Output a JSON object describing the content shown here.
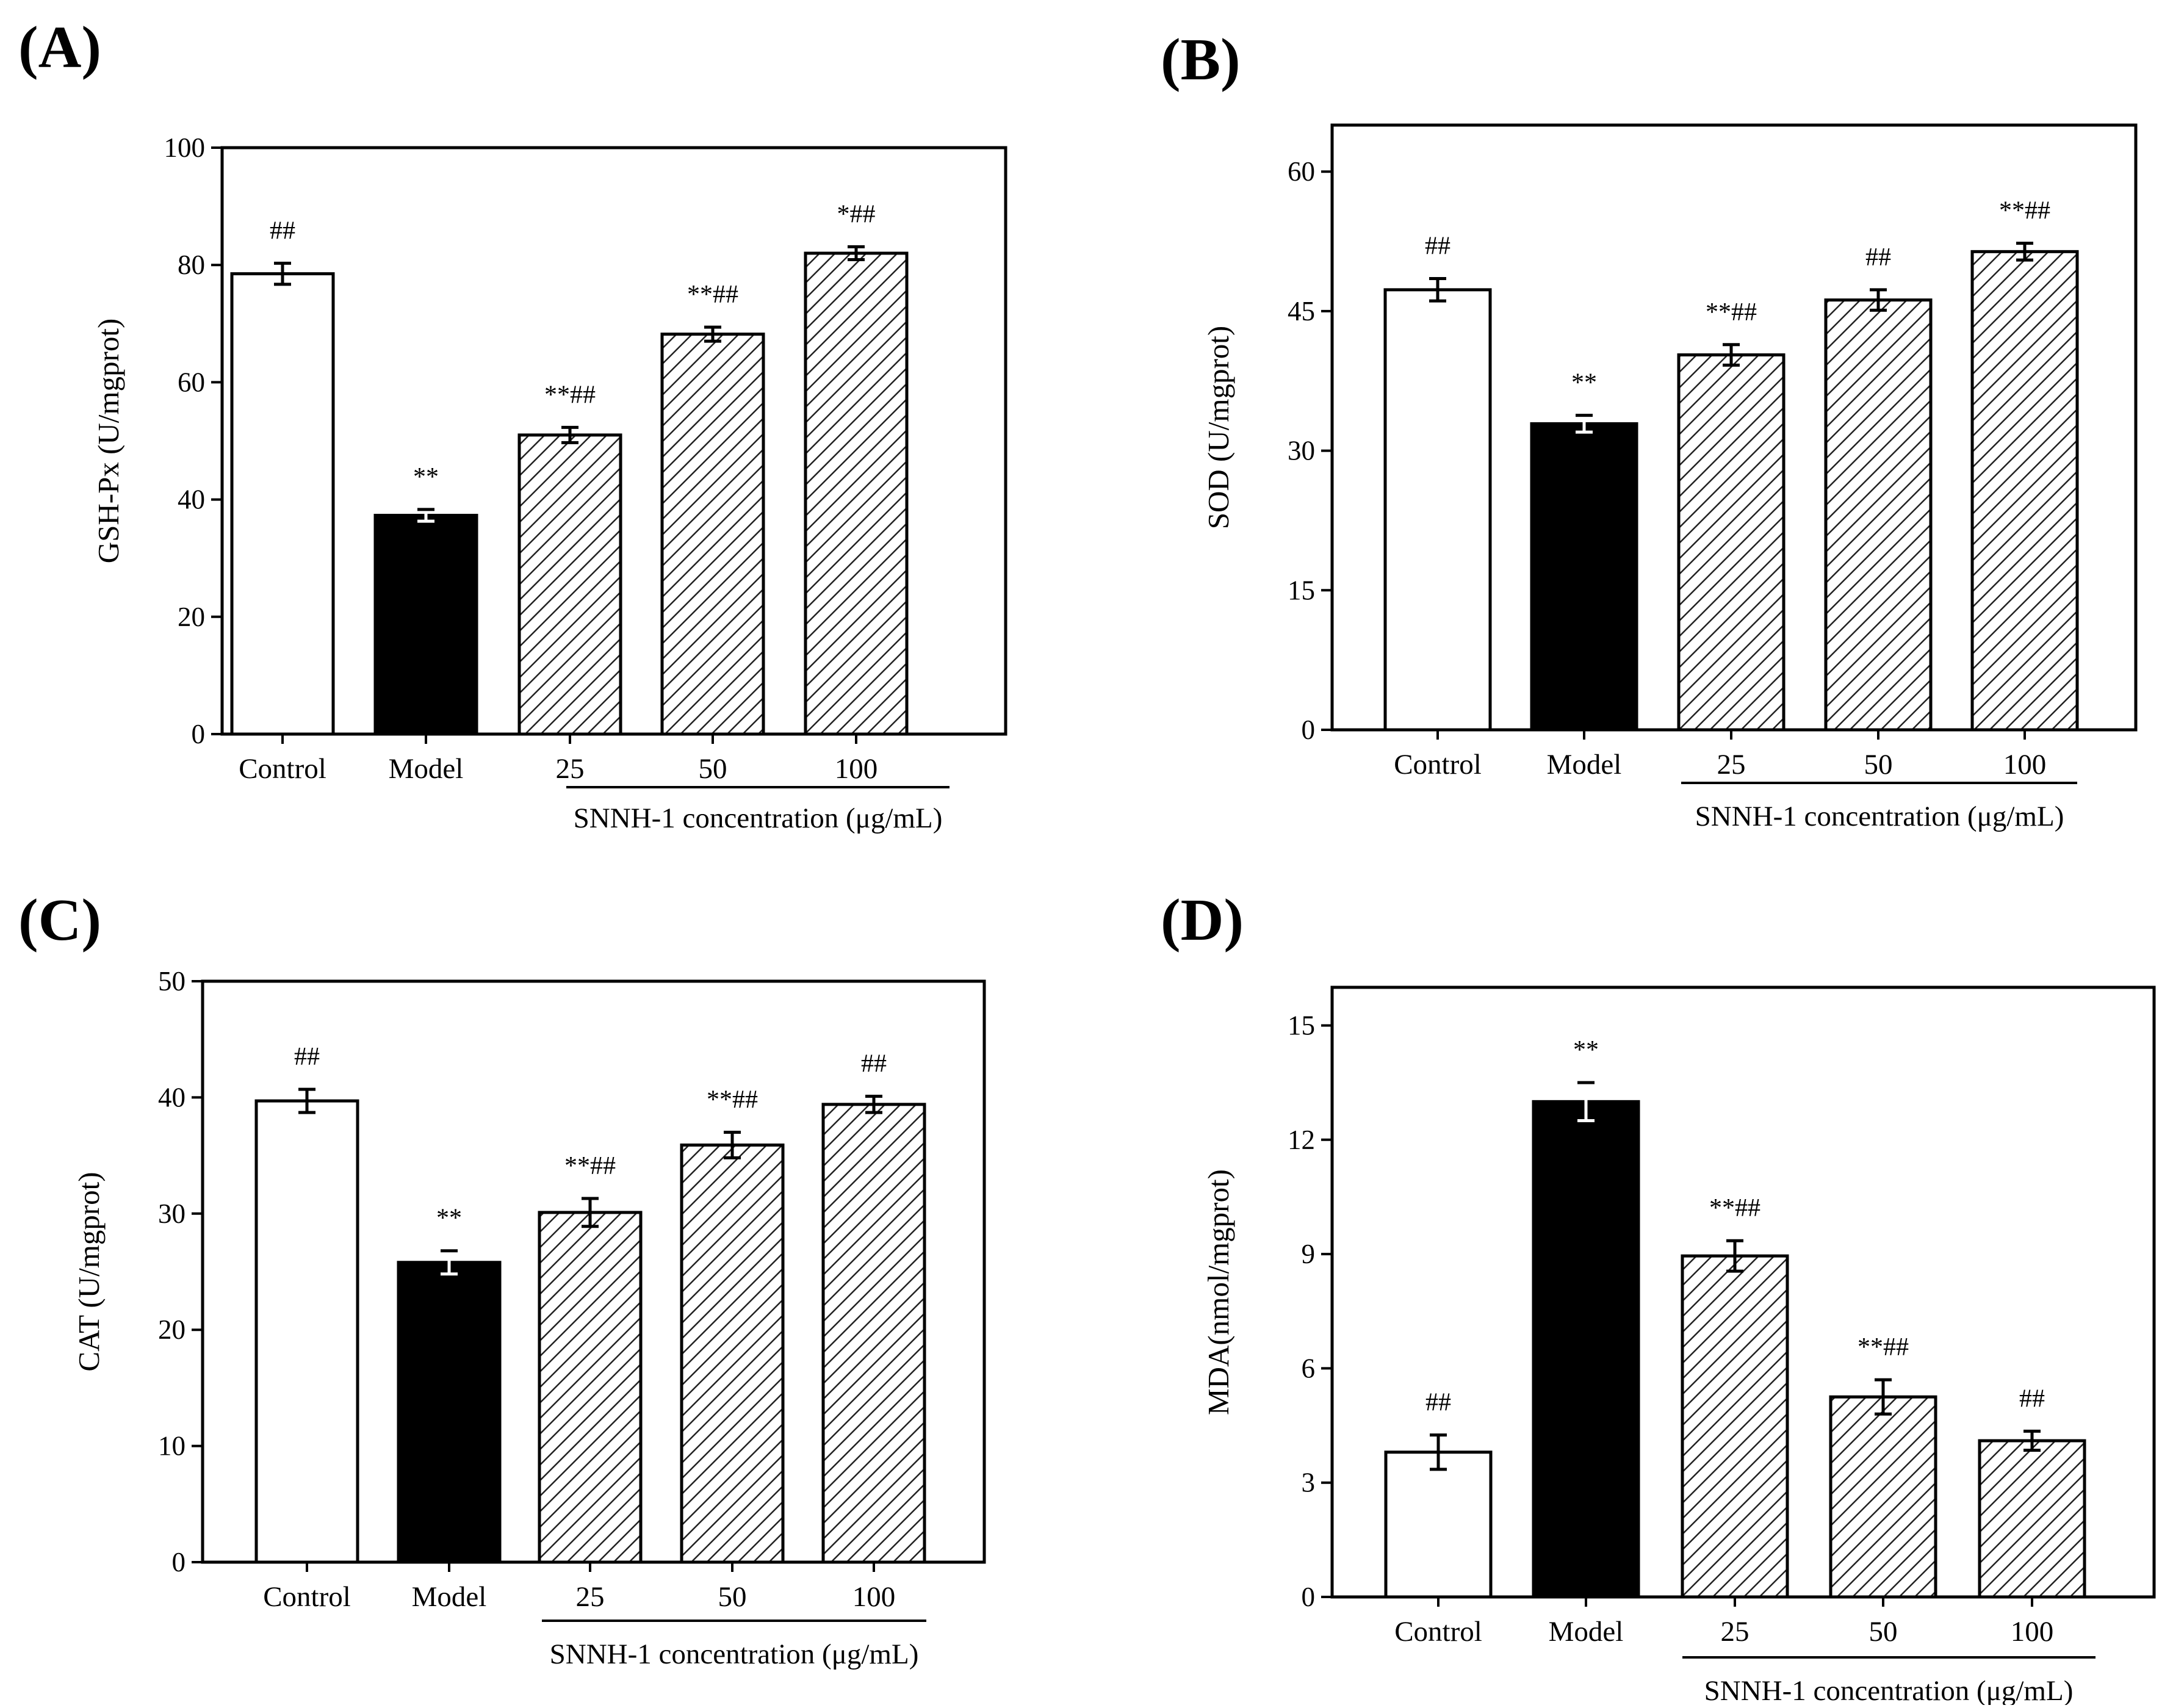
{
  "figure": {
    "categories": [
      "Control",
      "Model",
      "25",
      "50",
      "100"
    ],
    "group_label": "SNNH-1 concentration (μg/mL)"
  },
  "chart_data": [
    {
      "type": "bar",
      "panel": "(A)",
      "ylabel": "GSH-Px (U/mgprot)",
      "xlabel": "",
      "categories": [
        "Control",
        "Model",
        "25",
        "50",
        "100"
      ],
      "group_label": "SNNH-1 concentration (μg/mL)",
      "values": [
        78.5,
        37.3,
        51.0,
        68.2,
        82.0
      ],
      "errors": [
        1.8,
        1.0,
        1.3,
        1.2,
        1.1
      ],
      "styles": [
        "white",
        "black",
        "hatched",
        "hatched",
        "hatched"
      ],
      "annotations": [
        "##",
        "**",
        "**##",
        "**##",
        "*##"
      ],
      "ylim": [
        0,
        100
      ],
      "yticks": [
        0,
        20,
        40,
        60,
        80,
        100
      ]
    },
    {
      "type": "bar",
      "panel": "(B)",
      "ylabel": "SOD (U/mgprot)",
      "xlabel": "",
      "categories": [
        "Control",
        "Model",
        "25",
        "50",
        "100"
      ],
      "group_label": "SNNH-1 concentration (μg/mL)",
      "values": [
        47.3,
        32.9,
        40.3,
        46.2,
        51.4
      ],
      "errors": [
        1.2,
        0.9,
        1.1,
        1.1,
        0.9
      ],
      "styles": [
        "white",
        "black",
        "hatched",
        "hatched",
        "hatched"
      ],
      "annotations": [
        "##",
        "**",
        "**##",
        "##",
        "**##"
      ],
      "ylim": [
        0,
        65
      ],
      "yticks": [
        0,
        15,
        30,
        45,
        60
      ]
    },
    {
      "type": "bar",
      "panel": "(C)",
      "ylabel": "CAT (U/mgprot)",
      "xlabel": "",
      "categories": [
        "Control",
        "Model",
        "25",
        "50",
        "100"
      ],
      "group_label": "SNNH-1 concentration (μg/mL)",
      "values": [
        39.7,
        25.8,
        30.1,
        35.9,
        39.4
      ],
      "errors": [
        1.0,
        1.0,
        1.2,
        1.1,
        0.7
      ],
      "styles": [
        "white",
        "black",
        "hatched",
        "hatched",
        "hatched"
      ],
      "annotations": [
        "##",
        "**",
        "**##",
        "**##",
        "##"
      ],
      "ylim": [
        0,
        50
      ],
      "yticks": [
        0,
        10,
        20,
        30,
        40,
        50
      ]
    },
    {
      "type": "bar",
      "panel": "(D)",
      "ylabel": "MDA(nmol/mgprot)",
      "xlabel": "",
      "categories": [
        "Control",
        "Model",
        "25",
        "50",
        "100"
      ],
      "group_label": "SNNH-1 concentration (μg/mL)",
      "values": [
        3.8,
        13.0,
        8.95,
        5.25,
        4.1
      ],
      "errors": [
        0.45,
        0.5,
        0.4,
        0.45,
        0.25
      ],
      "styles": [
        "white",
        "black",
        "hatched",
        "hatched",
        "hatched"
      ],
      "annotations": [
        "##",
        "**",
        "**##",
        "**##",
        "##"
      ],
      "ylim": [
        0,
        16
      ],
      "yticks": [
        0,
        3,
        6,
        9,
        12,
        15
      ]
    }
  ]
}
